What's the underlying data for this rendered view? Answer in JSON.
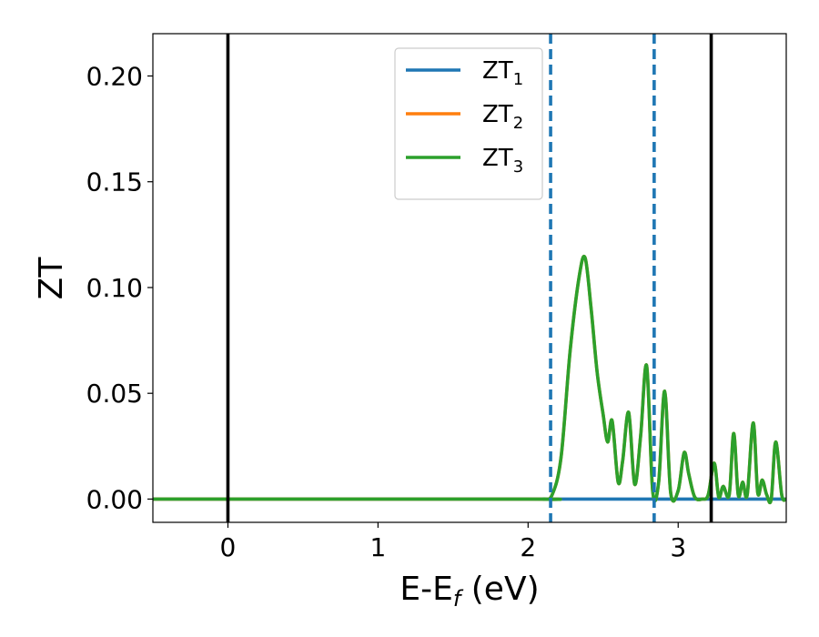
{
  "chart_data": {
    "type": "line",
    "xlabel": "E-E",
    "xlabel_sub": "f",
    "xlabel_unit": " (eV)",
    "ylabel": "ZT",
    "xlim": [
      -0.5,
      3.72
    ],
    "ylim": [
      -0.011,
      0.22
    ],
    "xticks": [
      0,
      1,
      2,
      3
    ],
    "xtick_labels": [
      "0",
      "1",
      "2",
      "3"
    ],
    "yticks": [
      0.0,
      0.05,
      0.1,
      0.15,
      0.2
    ],
    "ytick_labels": [
      "0.00",
      "0.05",
      "0.10",
      "0.15",
      "0.20"
    ],
    "grid": false,
    "legend_position": "upper-center",
    "vertical_lines": [
      {
        "x": 0.0,
        "style": "solid",
        "color": "#000000"
      },
      {
        "x": 3.22,
        "style": "solid",
        "color": "#000000"
      },
      {
        "x": 2.15,
        "style": "dashed",
        "color": "#1f77b4"
      },
      {
        "x": 2.84,
        "style": "dashed",
        "color": "#1f77b4"
      }
    ],
    "series": [
      {
        "name": "ZT",
        "name_sub": "1",
        "color": "#1f77b4",
        "x": [
          -0.5,
          2.15,
          3.72
        ],
        "y": [
          0.0,
          0.0,
          0.0
        ]
      },
      {
        "name": "ZT",
        "name_sub": "2",
        "color": "#ff7f0e",
        "x": [
          -0.5,
          2.0,
          2.1,
          2.16,
          2.22,
          2.28,
          2.34,
          2.38,
          2.42,
          2.46,
          2.5,
          2.53,
          2.56,
          2.6,
          2.63,
          2.67,
          2.71,
          2.75,
          2.79,
          2.83,
          2.87,
          2.91,
          2.95,
          3.0,
          3.04,
          3.07,
          3.11,
          3.16,
          3.2,
          3.24,
          3.27,
          3.3,
          3.34,
          3.37,
          3.4,
          3.43,
          3.46,
          3.5,
          3.53,
          3.56,
          3.59,
          3.62,
          3.65,
          3.69,
          3.72
        ],
        "y": [
          0.0,
          0.0,
          0.0,
          0.002,
          0.02,
          0.07,
          0.105,
          0.114,
          0.09,
          0.06,
          0.04,
          0.027,
          0.037,
          0.008,
          0.018,
          0.041,
          0.007,
          0.03,
          0.063,
          0.004,
          0.008,
          0.051,
          0.003,
          0.004,
          0.022,
          0.012,
          0.001,
          0.0,
          0.002,
          0.017,
          0.001,
          0.006,
          0.002,
          0.031,
          0.002,
          0.008,
          0.002,
          0.036,
          0.003,
          0.009,
          0.002,
          0.0,
          0.027,
          0.002,
          0.0
        ]
      },
      {
        "name": "ZT",
        "name_sub": "3",
        "color": "#2ca02c",
        "x": [
          -0.5,
          2.0,
          2.1,
          2.16,
          2.22,
          2.28,
          2.34,
          2.38,
          2.42,
          2.46,
          2.5,
          2.53,
          2.56,
          2.6,
          2.63,
          2.67,
          2.71,
          2.75,
          2.79,
          2.83,
          2.87,
          2.91,
          2.95,
          3.0,
          3.04,
          3.07,
          3.11,
          3.16,
          3.2,
          3.24,
          3.27,
          3.3,
          3.34,
          3.37,
          3.4,
          3.43,
          3.46,
          3.5,
          3.53,
          3.56,
          3.59,
          3.62,
          3.65,
          3.69,
          3.72
        ],
        "y": [
          0.0,
          0.0,
          0.0,
          0.002,
          0.02,
          0.07,
          0.105,
          0.114,
          0.09,
          0.06,
          0.04,
          0.027,
          0.037,
          0.008,
          0.018,
          0.041,
          0.007,
          0.03,
          0.063,
          0.004,
          0.008,
          0.051,
          0.003,
          0.004,
          0.022,
          0.012,
          0.001,
          0.0,
          0.002,
          0.017,
          0.001,
          0.006,
          0.002,
          0.031,
          0.002,
          0.008,
          0.002,
          0.036,
          0.003,
          0.009,
          0.002,
          0.0,
          0.027,
          0.002,
          0.0
        ]
      }
    ]
  }
}
